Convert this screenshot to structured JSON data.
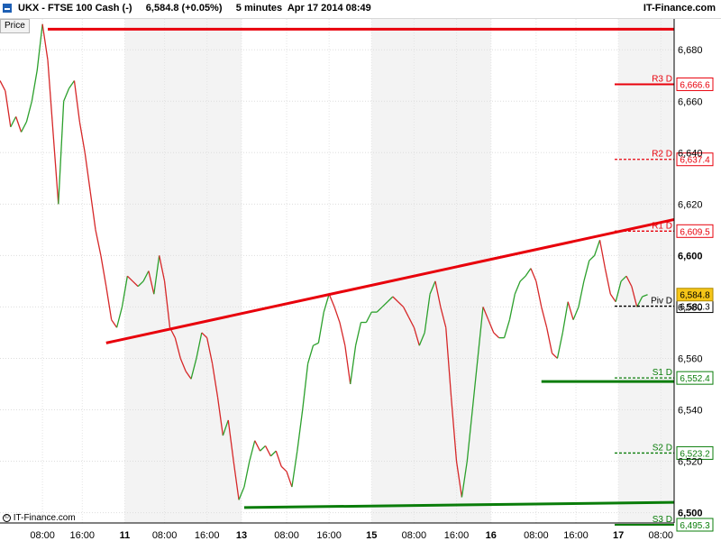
{
  "header": {
    "title": "UKX - FTSE 100 Cash (-)     6,584.8 (+0.05%)     5 minutes  Apr 17 2014 08:49",
    "brand": "IT-Finance.com",
    "icon": "chart-icon"
  },
  "price_tag": "Price",
  "copyright": "IT-Finance.com",
  "colors": {
    "up": "#2ca02c",
    "down": "#d62728",
    "resistance": "#e8000b",
    "support": "#0a7d0a",
    "current_price_bg": "#f5c518",
    "session_shade": "#f3f3f3"
  },
  "chart_data": {
    "type": "line",
    "title": "UKX - FTSE 100 Cash (-)",
    "timeframe": "5 minutes",
    "last_price": "6,584.8",
    "change": "+0.05%",
    "date": "Apr 17 2014 08:49",
    "y_axis": {
      "position": "right",
      "ylim": [
        6496,
        6692
      ],
      "ticks": [
        6500,
        6520,
        6540,
        6560,
        6580,
        6600,
        6620,
        6640,
        6660,
        6680
      ],
      "tick_labels": [
        "6,500",
        "6,520",
        "6,540",
        "6,560",
        "6,580",
        "6,600",
        "6,620",
        "6,640",
        "6,660",
        "6,680"
      ],
      "bold_ticks": [
        6500,
        6600
      ]
    },
    "x_axis": {
      "ticks": [
        {
          "label": "08:00",
          "bold": false
        },
        {
          "label": "16:00",
          "bold": false
        },
        {
          "label": "11",
          "bold": true
        },
        {
          "label": "08:00",
          "bold": false
        },
        {
          "label": "16:00",
          "bold": false
        },
        {
          "label": "13",
          "bold": true
        },
        {
          "label": "08:00",
          "bold": false
        },
        {
          "label": "16:00",
          "bold": false
        },
        {
          "label": "15",
          "bold": true
        },
        {
          "label": "08:00",
          "bold": false
        },
        {
          "label": "16:00",
          "bold": false
        },
        {
          "label": "16",
          "bold": true
        },
        {
          "label": "08:00",
          "bold": false
        },
        {
          "label": "16:00",
          "bold": false
        },
        {
          "label": "17",
          "bold": true
        },
        {
          "label": "08:00",
          "bold": false
        }
      ]
    },
    "price_series": [
      [
        0,
        6668
      ],
      [
        1,
        6664
      ],
      [
        2,
        6650
      ],
      [
        3,
        6654
      ],
      [
        4,
        6648
      ],
      [
        5,
        6652
      ],
      [
        6,
        6660
      ],
      [
        7,
        6672
      ],
      [
        8,
        6690
      ],
      [
        9,
        6676
      ],
      [
        10,
        6648
      ],
      [
        11,
        6620
      ],
      [
        12,
        6660
      ],
      [
        13,
        6665
      ],
      [
        14,
        6668
      ],
      [
        15,
        6652
      ],
      [
        16,
        6640
      ],
      [
        17,
        6625
      ],
      [
        18,
        6610
      ],
      [
        19,
        6600
      ],
      [
        20,
        6588
      ],
      [
        21,
        6575
      ],
      [
        22,
        6572
      ],
      [
        23,
        6580
      ],
      [
        24,
        6592
      ],
      [
        25,
        6590
      ],
      [
        26,
        6588
      ],
      [
        27,
        6590
      ],
      [
        28,
        6594
      ],
      [
        29,
        6585
      ],
      [
        30,
        6600
      ],
      [
        31,
        6590
      ],
      [
        32,
        6572
      ],
      [
        33,
        6568
      ],
      [
        34,
        6560
      ],
      [
        35,
        6555
      ],
      [
        36,
        6552
      ],
      [
        37,
        6560
      ],
      [
        38,
        6570
      ],
      [
        39,
        6568
      ],
      [
        40,
        6558
      ],
      [
        41,
        6545
      ],
      [
        42,
        6530
      ],
      [
        43,
        6536
      ],
      [
        44,
        6520
      ],
      [
        45,
        6505
      ],
      [
        46,
        6510
      ],
      [
        47,
        6520
      ],
      [
        48,
        6528
      ],
      [
        49,
        6524
      ],
      [
        50,
        6526
      ],
      [
        51,
        6522
      ],
      [
        52,
        6524
      ],
      [
        53,
        6518
      ],
      [
        54,
        6516
      ],
      [
        55,
        6510
      ],
      [
        56,
        6524
      ],
      [
        57,
        6540
      ],
      [
        58,
        6558
      ],
      [
        59,
        6565
      ],
      [
        60,
        6566
      ],
      [
        61,
        6578
      ],
      [
        62,
        6585
      ],
      [
        63,
        6580
      ],
      [
        64,
        6574
      ],
      [
        65,
        6565
      ],
      [
        66,
        6550
      ],
      [
        67,
        6565
      ],
      [
        68,
        6574
      ],
      [
        69,
        6574
      ],
      [
        70,
        6578
      ],
      [
        71,
        6578
      ],
      [
        72,
        6580
      ],
      [
        73,
        6582
      ],
      [
        74,
        6584
      ],
      [
        75,
        6582
      ],
      [
        76,
        6580
      ],
      [
        77,
        6576
      ],
      [
        78,
        6572
      ],
      [
        79,
        6565
      ],
      [
        80,
        6570
      ],
      [
        81,
        6585
      ],
      [
        82,
        6590
      ],
      [
        83,
        6580
      ],
      [
        84,
        6572
      ],
      [
        85,
        6545
      ],
      [
        86,
        6520
      ],
      [
        87,
        6506
      ],
      [
        88,
        6520
      ],
      [
        89,
        6540
      ],
      [
        90,
        6560
      ],
      [
        91,
        6580
      ],
      [
        92,
        6575
      ],
      [
        93,
        6570
      ],
      [
        94,
        6568
      ],
      [
        95,
        6568
      ],
      [
        96,
        6575
      ],
      [
        97,
        6585
      ],
      [
        98,
        6590
      ],
      [
        99,
        6592
      ],
      [
        100,
        6595
      ],
      [
        101,
        6590
      ],
      [
        102,
        6580
      ],
      [
        103,
        6572
      ],
      [
        104,
        6562
      ],
      [
        105,
        6560
      ],
      [
        106,
        6570
      ],
      [
        107,
        6582
      ],
      [
        108,
        6575
      ],
      [
        109,
        6580
      ],
      [
        110,
        6590
      ],
      [
        111,
        6598
      ],
      [
        112,
        6600
      ],
      [
        113,
        6606
      ],
      [
        114,
        6595
      ],
      [
        115,
        6585
      ],
      [
        116,
        6582
      ],
      [
        117,
        6590
      ],
      [
        118,
        6592
      ],
      [
        119,
        6588
      ],
      [
        120,
        6580
      ],
      [
        121,
        6584
      ],
      [
        122,
        6584.8
      ]
    ],
    "trendlines": [
      {
        "role": "resistance",
        "color": "red",
        "from": [
          9,
          6688
        ],
        "to": [
          127,
          6688
        ]
      },
      {
        "role": "resistance",
        "color": "red",
        "from": [
          20,
          6566
        ],
        "to": [
          127,
          6614
        ]
      },
      {
        "role": "support",
        "color": "green",
        "from": [
          46,
          6502
        ],
        "to": [
          127,
          6504
        ]
      },
      {
        "role": "support",
        "color": "green",
        "from": [
          102,
          6551
        ],
        "to": [
          127,
          6551
        ]
      }
    ],
    "pivot_levels": [
      {
        "name": "R3 D",
        "value": "6,666.6",
        "level": 6666.6,
        "solid": true,
        "color": "#e8000b"
      },
      {
        "name": "R2 D",
        "value": "6,637.4",
        "level": 6637.4,
        "solid": false,
        "color": "#e8000b"
      },
      {
        "name": "R1 D",
        "value": "6,609.5",
        "level": 6609.5,
        "solid": false,
        "color": "#e8000b"
      },
      {
        "name": "Piv D",
        "value": "6,580.3",
        "level": 6580.3,
        "solid": false,
        "color": "#000000"
      },
      {
        "name": "S1 D",
        "value": "6,552.4",
        "level": 6552.4,
        "solid": false,
        "color": "#0a7d0a"
      },
      {
        "name": "S2 D",
        "value": "6,523.2",
        "level": 6523.2,
        "solid": false,
        "color": "#0a7d0a"
      },
      {
        "name": "S3 D",
        "value": "6,495.3",
        "level": 6495.3,
        "solid": true,
        "color": "#0a7d0a"
      }
    ],
    "current_price": {
      "value": "6,584.8",
      "level": 6584.8
    }
  }
}
